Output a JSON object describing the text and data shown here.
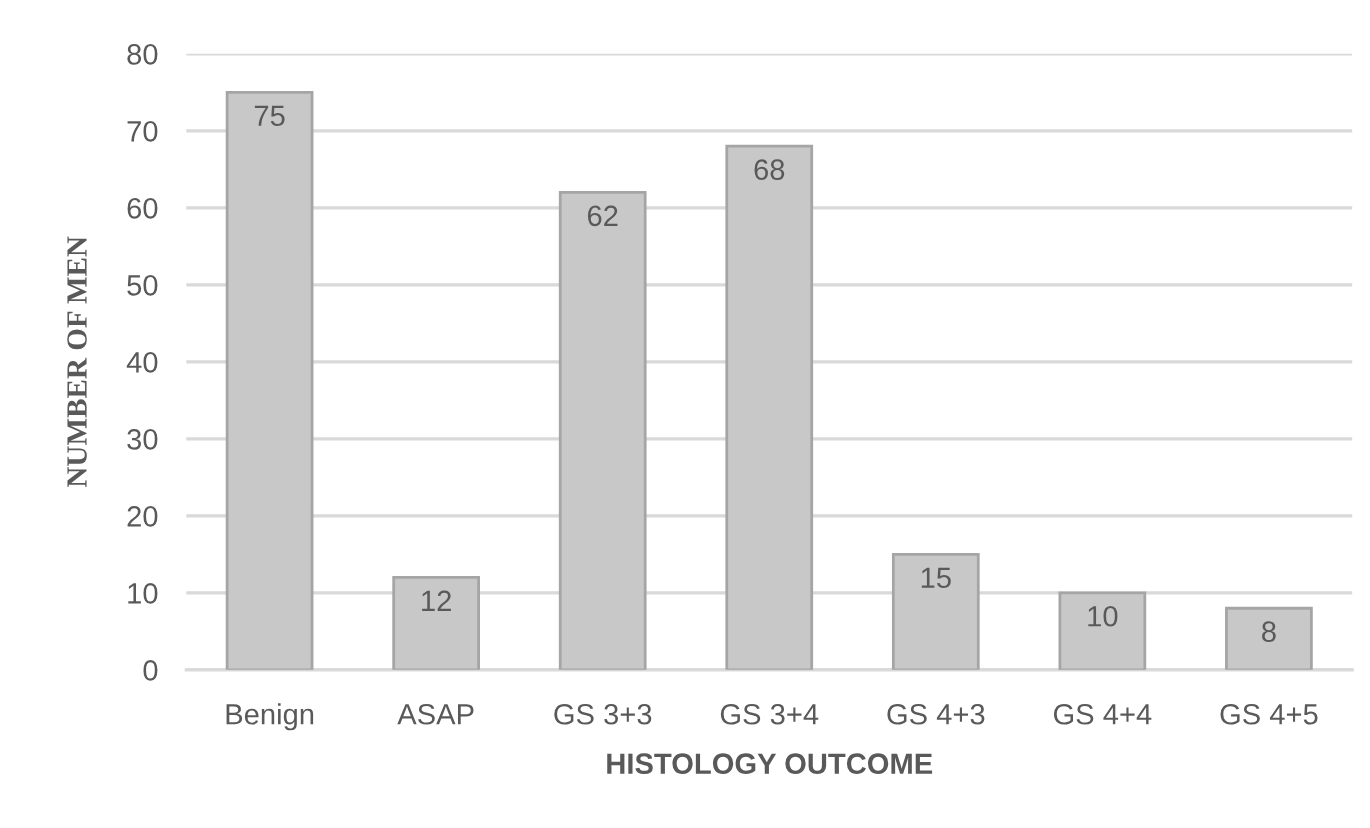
{
  "chart_data": {
    "type": "bar",
    "xlabel": "HISTOLOGY OUTCOME",
    "ylabel": "NUMBER OF MEN",
    "categories": [
      "Benign",
      "ASAP",
      "GS 3+3",
      "GS 3+4",
      "GS 4+3",
      "GS 4+4",
      "GS 4+5"
    ],
    "values": [
      75,
      12,
      62,
      68,
      15,
      10,
      8
    ],
    "color": "#c8c8c8",
    "ylim": [
      0,
      80
    ],
    "yticks": [
      0,
      10,
      20,
      30,
      40,
      50,
      60,
      70,
      80
    ],
    "grid": "y",
    "data_labels": true
  }
}
